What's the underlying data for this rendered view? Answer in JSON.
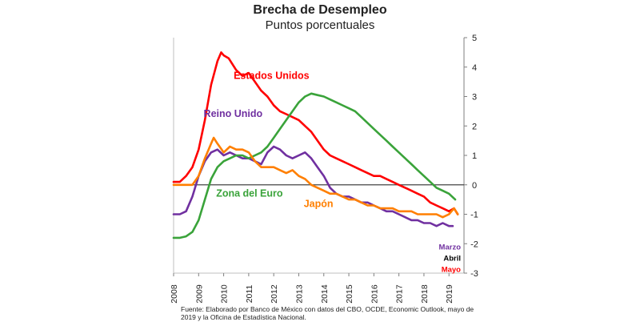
{
  "chart_data": {
    "type": "line",
    "title": "Brecha de Desempleo",
    "subtitle": "Puntos porcentuales",
    "source": "Fuente: Elaborado por Banco de México con datos del CBO, OCDE, Economic Outlook, mayo de 2019 y la Oficina de Estadística Nacional.",
    "x_tick_labels": [
      "2008",
      "2009",
      "2010",
      "2011",
      "2012",
      "2013",
      "2014",
      "2015",
      "2016",
      "2017",
      "2018",
      "2019"
    ],
    "y_tick_labels": [
      "5",
      "4",
      "3",
      "2",
      "1",
      "0",
      "-1",
      "-2",
      "-3"
    ],
    "xlim": [
      2008,
      2019.6
    ],
    "ylim": [
      -3,
      5
    ],
    "y_axis_side": "right",
    "end_labels": [
      {
        "text": "Marzo",
        "color": "#7030A0"
      },
      {
        "text": "Abril",
        "color": "#000000"
      },
      {
        "text": "Mayo",
        "color": "#FF0000"
      }
    ],
    "series": [
      {
        "name": "Estados Unidos",
        "color": "#FF0000",
        "x": [
          2008.0,
          2008.25,
          2008.5,
          2008.75,
          2009.0,
          2009.25,
          2009.5,
          2009.75,
          2009.9,
          2010.0,
          2010.2,
          2010.5,
          2010.75,
          2011.0,
          2011.25,
          2011.5,
          2011.75,
          2012.0,
          2012.25,
          2012.5,
          2012.75,
          2013.0,
          2013.25,
          2013.5,
          2013.75,
          2014.0,
          2014.25,
          2014.5,
          2014.75,
          2015.0,
          2015.25,
          2015.5,
          2015.75,
          2016.0,
          2016.25,
          2016.5,
          2016.75,
          2017.0,
          2017.25,
          2017.5,
          2017.75,
          2018.0,
          2018.25,
          2018.5,
          2018.75,
          2019.0,
          2019.2,
          2019.35
        ],
        "y": [
          0.1,
          0.1,
          0.3,
          0.6,
          1.2,
          2.2,
          3.4,
          4.2,
          4.5,
          4.4,
          4.3,
          3.9,
          3.7,
          3.8,
          3.5,
          3.2,
          3.0,
          2.7,
          2.5,
          2.4,
          2.3,
          2.2,
          2.0,
          1.8,
          1.5,
          1.2,
          1.0,
          0.9,
          0.8,
          0.7,
          0.6,
          0.5,
          0.4,
          0.3,
          0.3,
          0.2,
          0.1,
          0.0,
          -0.1,
          -0.2,
          -0.3,
          -0.4,
          -0.6,
          -0.7,
          -0.8,
          -0.9,
          -0.8,
          -1.0
        ]
      },
      {
        "name": "Reino Unido",
        "color": "#7030A0",
        "x": [
          2008.0,
          2008.25,
          2008.5,
          2008.75,
          2009.0,
          2009.25,
          2009.5,
          2009.75,
          2010.0,
          2010.25,
          2010.5,
          2010.75,
          2011.0,
          2011.25,
          2011.5,
          2011.75,
          2012.0,
          2012.25,
          2012.5,
          2012.75,
          2013.0,
          2013.25,
          2013.5,
          2013.75,
          2014.0,
          2014.25,
          2014.5,
          2014.75,
          2015.0,
          2015.25,
          2015.5,
          2015.75,
          2016.0,
          2016.25,
          2016.5,
          2016.75,
          2017.0,
          2017.25,
          2017.5,
          2017.75,
          2018.0,
          2018.25,
          2018.5,
          2018.75,
          2019.0,
          2019.15
        ],
        "y": [
          -1.0,
          -1.0,
          -0.9,
          -0.4,
          0.3,
          0.8,
          1.1,
          1.2,
          1.0,
          1.1,
          1.0,
          0.9,
          0.9,
          0.8,
          0.7,
          1.1,
          1.3,
          1.2,
          1.0,
          0.9,
          1.0,
          1.1,
          0.9,
          0.6,
          0.3,
          -0.1,
          -0.3,
          -0.4,
          -0.4,
          -0.5,
          -0.6,
          -0.6,
          -0.7,
          -0.8,
          -0.9,
          -0.9,
          -1.0,
          -1.1,
          -1.2,
          -1.2,
          -1.3,
          -1.3,
          -1.4,
          -1.3,
          -1.4,
          -1.4
        ]
      },
      {
        "name": "Zona del Euro",
        "color": "#3AA33A",
        "x": [
          2008.0,
          2008.25,
          2008.5,
          2008.75,
          2009.0,
          2009.25,
          2009.5,
          2009.75,
          2010.0,
          2010.25,
          2010.5,
          2010.75,
          2011.0,
          2011.25,
          2011.5,
          2011.75,
          2012.0,
          2012.25,
          2012.5,
          2012.75,
          2013.0,
          2013.25,
          2013.5,
          2013.75,
          2014.0,
          2014.25,
          2014.5,
          2014.75,
          2015.0,
          2015.25,
          2015.5,
          2015.75,
          2016.0,
          2016.25,
          2016.5,
          2016.75,
          2017.0,
          2017.25,
          2017.5,
          2017.75,
          2018.0,
          2018.25,
          2018.5,
          2018.75,
          2019.0,
          2019.25
        ],
        "y": [
          -1.8,
          -1.8,
          -1.75,
          -1.6,
          -1.2,
          -0.5,
          0.2,
          0.6,
          0.8,
          0.9,
          1.0,
          1.0,
          0.9,
          1.0,
          1.1,
          1.3,
          1.6,
          1.9,
          2.2,
          2.5,
          2.8,
          3.0,
          3.1,
          3.05,
          3.0,
          2.9,
          2.8,
          2.7,
          2.6,
          2.5,
          2.3,
          2.1,
          1.9,
          1.7,
          1.5,
          1.3,
          1.1,
          0.9,
          0.7,
          0.5,
          0.3,
          0.1,
          -0.1,
          -0.2,
          -0.3,
          -0.5
        ]
      },
      {
        "name": "Japón",
        "color": "#FF7F00",
        "x": [
          2008.0,
          2008.25,
          2008.5,
          2008.75,
          2009.0,
          2009.25,
          2009.5,
          2009.6,
          2009.75,
          2010.0,
          2010.25,
          2010.5,
          2010.75,
          2011.0,
          2011.25,
          2011.5,
          2011.75,
          2012.0,
          2012.25,
          2012.5,
          2012.75,
          2013.0,
          2013.25,
          2013.5,
          2013.75,
          2014.0,
          2014.25,
          2014.5,
          2014.75,
          2015.0,
          2015.25,
          2015.5,
          2015.75,
          2016.0,
          2016.25,
          2016.5,
          2016.75,
          2017.0,
          2017.25,
          2017.5,
          2017.75,
          2018.0,
          2018.25,
          2018.5,
          2018.75,
          2019.0,
          2019.2,
          2019.35
        ],
        "y": [
          0.0,
          0.0,
          0.0,
          0.0,
          0.3,
          0.9,
          1.4,
          1.6,
          1.4,
          1.1,
          1.3,
          1.2,
          1.2,
          1.1,
          0.8,
          0.6,
          0.6,
          0.6,
          0.5,
          0.4,
          0.5,
          0.3,
          0.2,
          0.0,
          -0.1,
          -0.2,
          -0.3,
          -0.3,
          -0.4,
          -0.5,
          -0.5,
          -0.6,
          -0.7,
          -0.7,
          -0.8,
          -0.8,
          -0.8,
          -0.9,
          -0.9,
          -0.9,
          -1.0,
          -1.0,
          -1.0,
          -1.0,
          -1.1,
          -1.0,
          -0.8,
          -1.0
        ]
      }
    ],
    "series_labels": [
      {
        "text": "Estados Unidos",
        "color": "#FF0000",
        "x": 2010.4,
        "y": 3.6
      },
      {
        "text": "Reino Unido",
        "color": "#7030A0",
        "x": 2009.2,
        "y": 2.3
      },
      {
        "text": "Zona del Euro",
        "color": "#3AA33A",
        "x": 2009.7,
        "y": -0.4
      },
      {
        "text": "Japón",
        "color": "#FF7F00",
        "x": 2013.2,
        "y": -0.75
      }
    ]
  }
}
